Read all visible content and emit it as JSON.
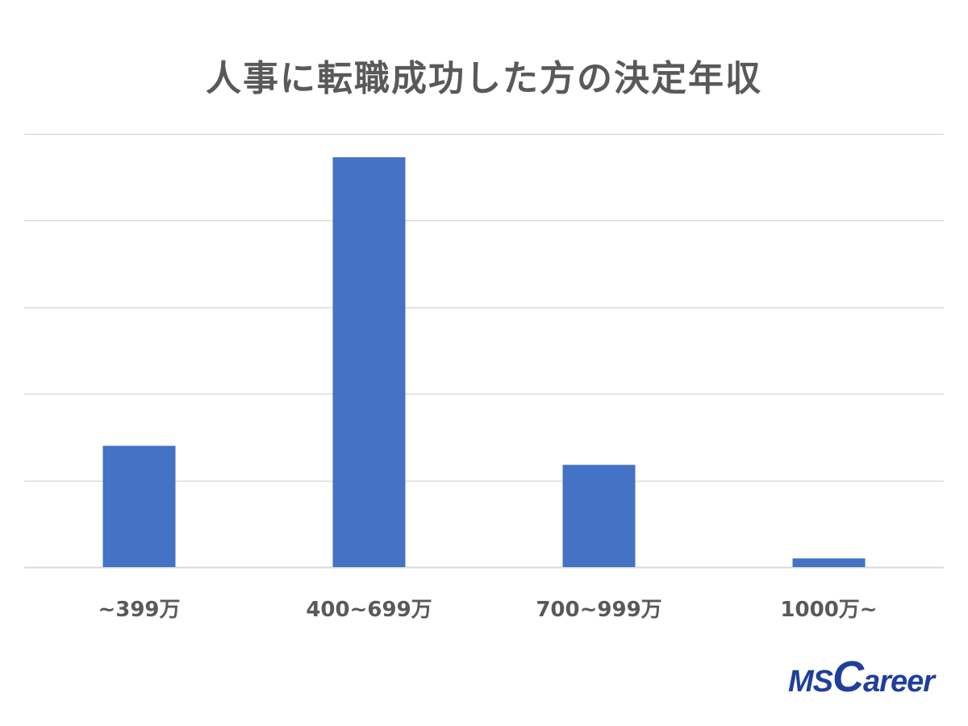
{
  "chart_data": {
    "type": "bar",
    "title": "人事に転職成功した方の決定年収",
    "categories": [
      "~399万",
      "400~699万",
      "700~999万",
      "1000万~"
    ],
    "values": [
      14,
      47.3,
      11.8,
      1
    ],
    "ylim": [
      0,
      50
    ],
    "ytick_step": 10,
    "grid": true,
    "bar_color": "#4472c4",
    "grid_color": "#d9d9d9",
    "xlabel": "",
    "ylabel": ""
  },
  "logo": {
    "ms": "MS",
    "c": "C",
    "areer": "areer",
    "color": "#1f3f9a"
  }
}
